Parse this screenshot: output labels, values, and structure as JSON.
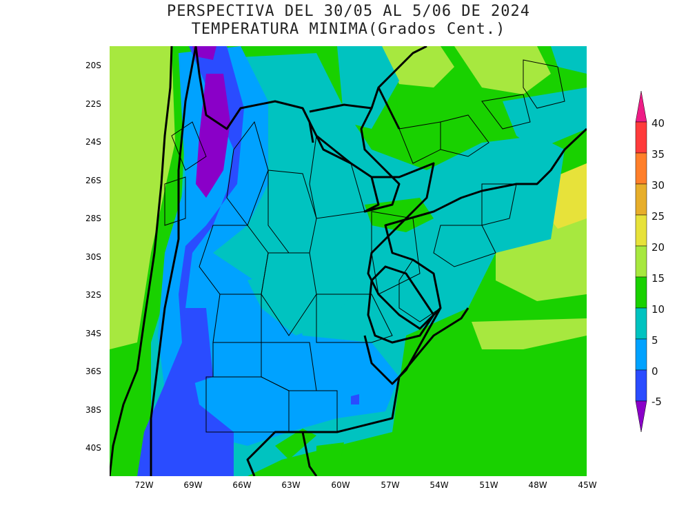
{
  "title": {
    "line1": "PERSPECTIVA DEL 30/05 AL 5/06 DE 2024",
    "line2": "TEMPERATURA MINIMA(Grados Cent.)"
  },
  "axes": {
    "lat_labels": [
      "20S",
      "22S",
      "24S",
      "26S",
      "28S",
      "30S",
      "32S",
      "34S",
      "36S",
      "38S",
      "40S"
    ],
    "lon_labels": [
      "72W",
      "69W",
      "66W",
      "63W",
      "60W",
      "57W",
      "54W",
      "51W",
      "48W",
      "45W"
    ]
  },
  "colorbar": {
    "labels": [
      "40",
      "35",
      "30",
      "25",
      "20",
      "15",
      "10",
      "5",
      "0",
      "-5"
    ],
    "colors": [
      "#ff3b3b",
      "#ff7f2a",
      "#e7ae2a",
      "#e7e23a",
      "#a7e83f",
      "#19d100",
      "#00c3c0",
      "#00a2ff",
      "#2a4cff",
      "#8a00c8"
    ],
    "top_arrow_color": "#ee1c86",
    "bottom_arrow_color": "#8a00c8"
  }
}
